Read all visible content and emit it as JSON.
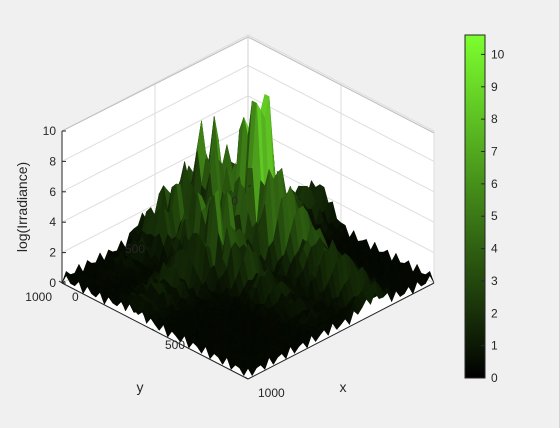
{
  "chart_data": {
    "type": "surface",
    "zlabel": "log(Irradiance)",
    "xlabel": "x",
    "ylabel": "y",
    "x_ticks": [
      "0",
      "500",
      "1000"
    ],
    "y_ticks": [
      "0",
      "500",
      "1000"
    ],
    "z_ticks": [
      "0",
      "2",
      "4",
      "6",
      "8",
      "10"
    ],
    "colorbar_ticks": [
      "0",
      "1",
      "2",
      "3",
      "4",
      "5",
      "6",
      "7",
      "8",
      "9",
      "10"
    ],
    "xlim": [
      0,
      1000
    ],
    "ylim": [
      0,
      1000
    ],
    "zlim": [
      0,
      10
    ],
    "clim": [
      0,
      10.6
    ],
    "colormap": [
      "#000000",
      "#7cff2e"
    ],
    "grid": true,
    "peak_value": 10.4
  }
}
